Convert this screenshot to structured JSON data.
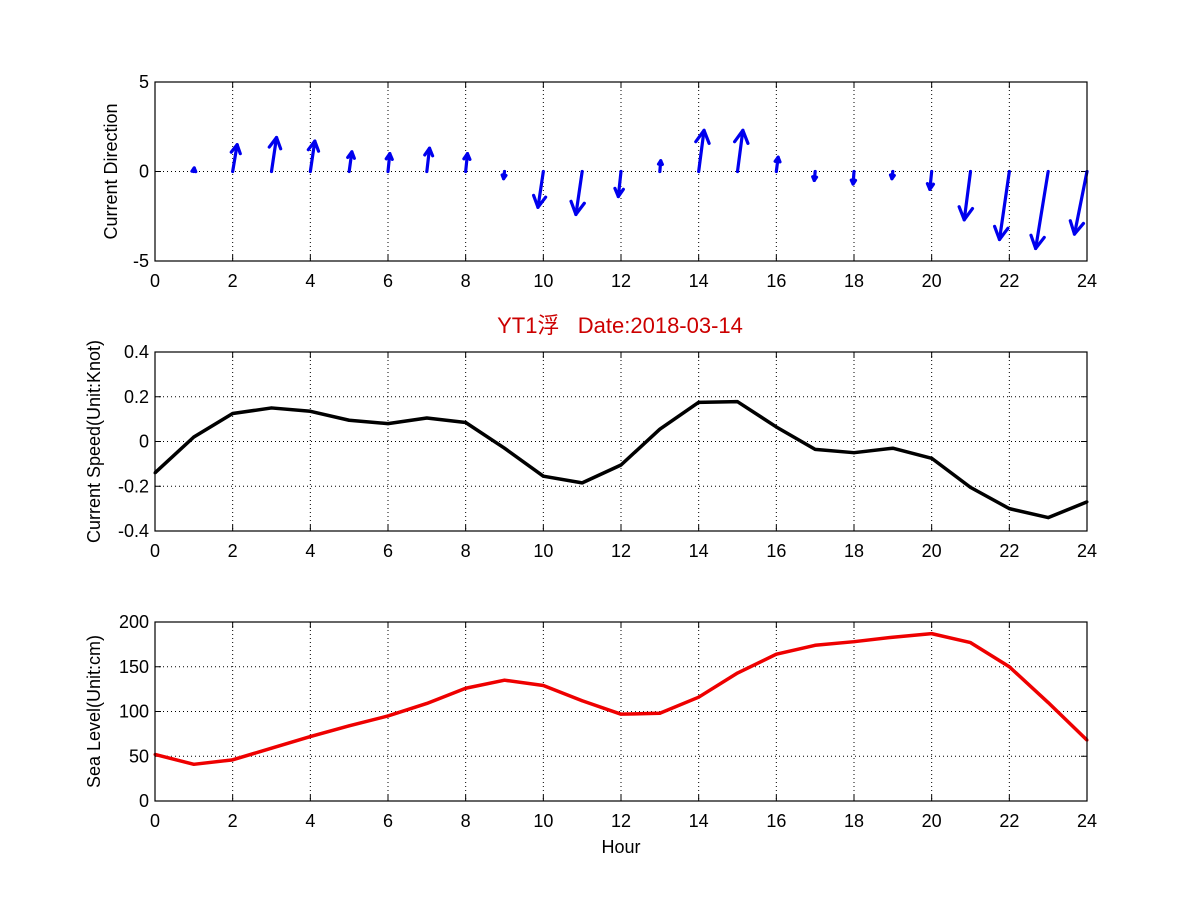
{
  "figure": {
    "title": "YT1浮   Date:2018-03-14",
    "title_color": "#cc0000"
  },
  "chart_data": [
    {
      "type": "quiver",
      "ylabel": "Current Direction",
      "xlabel": "",
      "xlim": [
        0,
        24
      ],
      "ylim": [
        -5,
        5
      ],
      "xticks": [
        0,
        2,
        4,
        6,
        8,
        10,
        12,
        14,
        16,
        18,
        20,
        22,
        24
      ],
      "yticks": [
        -5,
        0,
        5
      ],
      "grid": true,
      "color": "#0000ee",
      "x": [
        1,
        2,
        3,
        4,
        5,
        6,
        7,
        8,
        9,
        10,
        11,
        12,
        13,
        14,
        15,
        16,
        17,
        18,
        19,
        20,
        21,
        22,
        23,
        24
      ],
      "u": [
        0.02,
        0.25,
        0.28,
        0.25,
        0.15,
        0.1,
        0.15,
        0.1,
        -0.05,
        -0.3,
        -0.35,
        -0.15,
        0.05,
        0.3,
        0.3,
        0.1,
        -0.05,
        -0.05,
        -0.05,
        -0.1,
        -0.35,
        -0.55,
        -0.7,
        -0.7
      ],
      "v": [
        0.2,
        1.5,
        1.9,
        1.7,
        1.1,
        1.0,
        1.3,
        1.0,
        -0.4,
        -2.0,
        -2.4,
        -1.4,
        0.6,
        2.3,
        2.3,
        0.8,
        -0.5,
        -0.7,
        -0.4,
        -1.0,
        -2.7,
        -3.8,
        -4.3,
        -3.5
      ]
    },
    {
      "type": "line",
      "ylabel": "Current Speed(Unit:Knot)",
      "xlabel": "",
      "xlim": [
        0,
        24
      ],
      "ylim": [
        -0.4,
        0.4
      ],
      "xticks": [
        0,
        2,
        4,
        6,
        8,
        10,
        12,
        14,
        16,
        18,
        20,
        22,
        24
      ],
      "yticks": [
        -0.4,
        -0.2,
        0,
        0.2,
        0.4
      ],
      "ytick_labels": [
        "-0.4",
        "-0.2",
        "0",
        "0.2",
        "0.4"
      ],
      "grid": true,
      "color": "#000000",
      "x": [
        0,
        1,
        2,
        3,
        4,
        5,
        6,
        7,
        8,
        9,
        10,
        11,
        12,
        13,
        14,
        15,
        16,
        17,
        18,
        19,
        20,
        21,
        22,
        23,
        24
      ],
      "y": [
        -0.14,
        0.02,
        0.125,
        0.15,
        0.135,
        0.095,
        0.08,
        0.105,
        0.085,
        -0.03,
        -0.155,
        -0.185,
        -0.105,
        0.055,
        0.175,
        0.178,
        0.065,
        -0.035,
        -0.05,
        -0.03,
        -0.075,
        -0.205,
        -0.3,
        -0.34,
        -0.27
      ]
    },
    {
      "type": "line",
      "ylabel": "Sea Level(Unit:cm)",
      "xlabel": "Hour",
      "xlim": [
        0,
        24
      ],
      "ylim": [
        0,
        200
      ],
      "xticks": [
        0,
        2,
        4,
        6,
        8,
        10,
        12,
        14,
        16,
        18,
        20,
        22,
        24
      ],
      "yticks": [
        0,
        50,
        100,
        150,
        200
      ],
      "grid": true,
      "color": "#ee0000",
      "x": [
        0,
        1,
        2,
        3,
        4,
        5,
        6,
        7,
        8,
        9,
        10,
        11,
        12,
        13,
        14,
        15,
        16,
        17,
        18,
        19,
        20,
        21,
        22,
        23,
        24
      ],
      "y": [
        52,
        41,
        46,
        59,
        72,
        84,
        95,
        109,
        126,
        135,
        129,
        112,
        97,
        98,
        116,
        143,
        164,
        174,
        178,
        183,
        187,
        177,
        150,
        110,
        68
      ]
    }
  ]
}
